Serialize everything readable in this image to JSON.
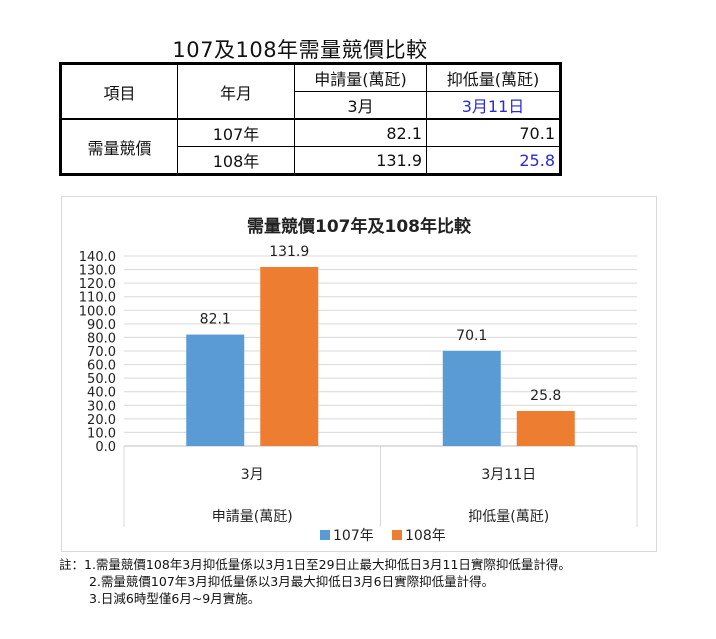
{
  "page_title": "107及108年需量競價比較",
  "table": {
    "h_item": "項目",
    "h_ym": "年月",
    "h_apply": "申請量(萬瓩)",
    "h_suppress": "抑低量(萬瓩)",
    "h_apply_month": "3月",
    "h_suppress_month": "3月11日",
    "row_group": "需量競價",
    "rows": [
      {
        "year": "107年",
        "apply": "82.1",
        "suppress": "70.1"
      },
      {
        "year": "108年",
        "apply": "131.9",
        "suppress": "25.8"
      }
    ]
  },
  "chart_data": {
    "type": "bar",
    "title": "需量競價107年及108年比較",
    "categories": [
      "3月",
      "3月11日"
    ],
    "groups": [
      "申請量(萬瓩)",
      "抑低量(萬瓩)"
    ],
    "series": [
      {
        "name": "107年",
        "values": [
          82.1,
          70.1
        ],
        "color": "#5b9bd5"
      },
      {
        "name": "108年",
        "values": [
          131.9,
          25.8
        ],
        "color": "#ed7d31"
      }
    ],
    "data_labels": [
      "82.1",
      "70.1",
      "131.9",
      "25.8"
    ],
    "ylim": [
      0,
      140
    ],
    "yticks": [
      "0.0",
      "10.0",
      "20.0",
      "30.0",
      "40.0",
      "50.0",
      "60.0",
      "70.0",
      "80.0",
      "90.0",
      "100.0",
      "110.0",
      "120.0",
      "130.0",
      "140.0"
    ],
    "grid": true,
    "legend_position": "bottom"
  },
  "notes": [
    "註：1.需量競價108年3月抑低量係以3月1日至29日止最大抑低日3月11日實際抑低量計得。",
    "2.需量競價107年3月抑低量係以3月最大抑低日3月6日實際抑低量計得。",
    "3.日減6時型僅6月~9月實施。"
  ]
}
